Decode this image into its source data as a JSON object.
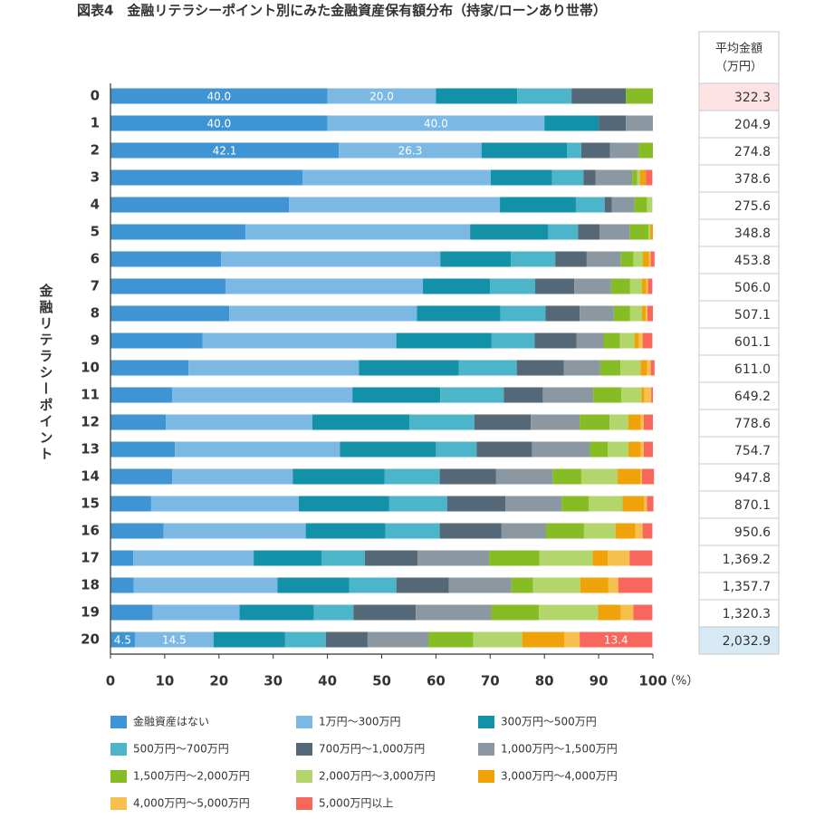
{
  "chart_data": {
    "type": "stacked-barh",
    "title": "図表4　金融リテラシーポイント別にみた金融資産保有額分布（持家/ローンあり世帯）",
    "ylabel": "金融リテラシーポイント",
    "xlabel": "（%）",
    "categories": [
      "0",
      "1",
      "2",
      "3",
      "4",
      "5",
      "6",
      "7",
      "8",
      "9",
      "10",
      "11",
      "12",
      "13",
      "14",
      "15",
      "16",
      "17",
      "18",
      "19",
      "20"
    ],
    "xlim": [
      0,
      100
    ],
    "xticks": [
      0,
      10,
      20,
      30,
      40,
      50,
      60,
      70,
      80,
      90,
      100
    ],
    "series": [
      {
        "name": "金融資産はない",
        "color": "#3f94d3",
        "values": [
          40,
          40,
          42.1,
          35.4,
          32.9,
          24.9,
          20.4,
          21.2,
          21.9,
          17.0,
          14.4,
          11.4,
          10.2,
          11.9,
          11.4,
          7.5,
          9.8,
          4.2,
          4.3,
          7.8,
          4.5
        ],
        "value_labels": [
          "40.0",
          "40.0",
          "42.1",
          null,
          null,
          null,
          null,
          null,
          null,
          null,
          null,
          null,
          null,
          null,
          null,
          null,
          null,
          null,
          null,
          null,
          "4.5"
        ]
      },
      {
        "name": "1万円〜300万円",
        "color": "#7cb8e4",
        "values": [
          20,
          40,
          26.3,
          34.7,
          38.9,
          41.4,
          40.4,
          36.4,
          34.6,
          35.7,
          31.4,
          33.2,
          27.0,
          30.4,
          22.2,
          27.2,
          26.2,
          22.2,
          26.5,
          16.0,
          14.5
        ],
        "value_labels": [
          "20.0",
          "40.0",
          "26.3",
          null,
          null,
          null,
          null,
          null,
          null,
          null,
          null,
          null,
          null,
          null,
          null,
          null,
          null,
          null,
          null,
          null,
          "14.5"
        ]
      },
      {
        "name": "300万円〜500万円",
        "color": "#1391a9",
        "values": [
          15,
          10,
          15.8,
          11.3,
          14.0,
          14.4,
          13.0,
          12.4,
          15.4,
          17.5,
          18.4,
          16.2,
          17.9,
          17.7,
          16.9,
          16.7,
          14.7,
          12.5,
          13.2,
          13.7,
          13.2
        ]
      },
      {
        "name": "500万円〜700万円",
        "color": "#4cb5c9",
        "values": [
          10,
          0,
          2.6,
          5.8,
          5.3,
          5.5,
          8.2,
          8.3,
          8.3,
          8.0,
          10.7,
          11.7,
          12.0,
          7.5,
          10.2,
          10.7,
          10.0,
          8.0,
          8.7,
          7.3,
          7.5
        ]
      },
      {
        "name": "700万円〜1,000万円",
        "color": "#546878",
        "values": [
          10,
          5,
          5.3,
          2.2,
          1.3,
          4.0,
          5.8,
          7.2,
          6.3,
          7.7,
          8.7,
          7.2,
          10.4,
          10.2,
          10.4,
          10.7,
          11.4,
          9.7,
          9.7,
          11.5,
          7.7
        ]
      },
      {
        "name": "1,000万円〜1,500万円",
        "color": "#8b97a1",
        "values": [
          0,
          5,
          5.3,
          6.8,
          4.2,
          5.5,
          6.3,
          6.8,
          6.3,
          5.0,
          6.7,
          9.3,
          9.0,
          10.7,
          10.4,
          10.4,
          8.2,
          13.2,
          11.5,
          13.9,
          11.2
        ]
      },
      {
        "name": "1,500万円〜2,000万円",
        "color": "#86bd25",
        "values": [
          5,
          0,
          2.6,
          0.9,
          2.3,
          3.5,
          2.3,
          3.5,
          3.0,
          3.0,
          3.7,
          5.2,
          5.5,
          3.3,
          5.3,
          5.0,
          7.0,
          9.3,
          4.0,
          8.8,
          8.3
        ]
      },
      {
        "name": "2,000万円〜3,000万円",
        "color": "#b3d66c",
        "values": [
          0,
          0,
          0,
          0.5,
          1.0,
          0.3,
          1.7,
          2.2,
          2.2,
          2.7,
          3.7,
          3.7,
          3.5,
          3.8,
          6.7,
          6.2,
          5.8,
          9.8,
          8.7,
          10.9,
          9.0
        ]
      },
      {
        "name": "3,000万円〜4,000万円",
        "color": "#f0a20a",
        "values": [
          0,
          0,
          0,
          1.1,
          0,
          0.5,
          1.2,
          0.8,
          0.7,
          0.8,
          1.2,
          0.5,
          2.3,
          2.3,
          4.2,
          4.0,
          3.7,
          2.8,
          5.2,
          4.2,
          7.8
        ]
      },
      {
        "name": "4,000万円〜5,000万円",
        "color": "#f6c04e",
        "values": [
          0,
          0,
          0,
          0,
          0,
          0,
          0.3,
          0.3,
          0.3,
          0.7,
          0.7,
          1.3,
          0.5,
          0.5,
          0.3,
          0.5,
          1.3,
          4.0,
          1.8,
          2.3,
          2.8
        ]
      },
      {
        "name": "5,000万円以上",
        "color": "#f8665c",
        "values": [
          0,
          0,
          0,
          1.2,
          0,
          0,
          0.7,
          0.8,
          1.0,
          1.8,
          0.7,
          0.3,
          1.7,
          1.7,
          2.2,
          1.2,
          1.8,
          4.2,
          6.3,
          3.5,
          13.4
        ],
        "value_labels": [
          null,
          null,
          null,
          null,
          null,
          null,
          null,
          null,
          null,
          null,
          null,
          null,
          null,
          null,
          null,
          null,
          null,
          null,
          null,
          null,
          "13.4"
        ]
      }
    ],
    "table": {
      "header": [
        "平均金額",
        "（万円）"
      ],
      "cells": [
        "322.3",
        "204.9",
        "274.8",
        "378.6",
        "275.6",
        "348.8",
        "453.8",
        "506.0",
        "507.1",
        "601.1",
        "611.0",
        "649.2",
        "778.6",
        "754.7",
        "947.8",
        "870.1",
        "950.6",
        "1,369.2",
        "1,357.7",
        "1,320.3",
        "2,032.9"
      ]
    }
  }
}
